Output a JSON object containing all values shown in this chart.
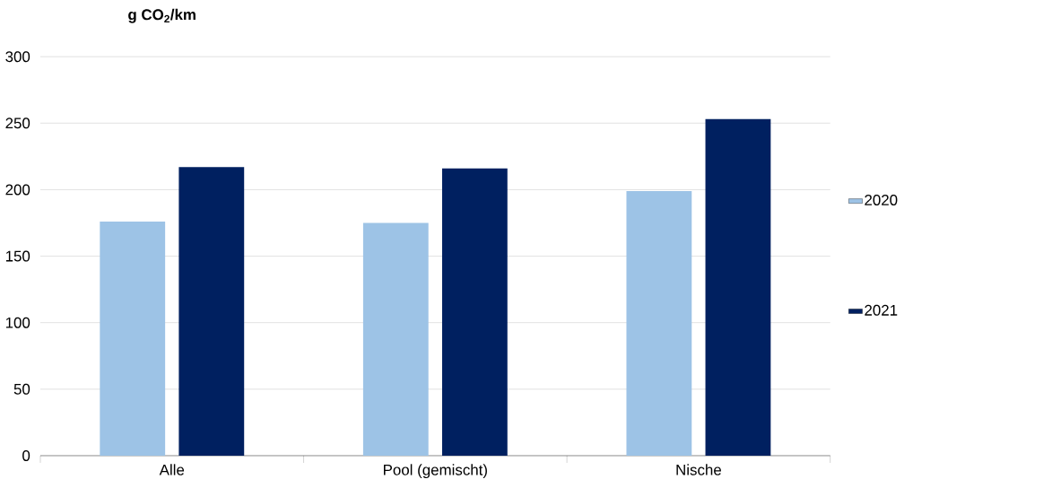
{
  "chart_data": {
    "type": "bar",
    "ylabel": "g CO$_{2}$/km",
    "categories": [
      "Alle",
      "Pool (gemischt)",
      "Nische"
    ],
    "series": [
      {
        "name": "2020",
        "color": "#9dc3e6",
        "values": [
          176,
          175,
          199
        ]
      },
      {
        "name": "2021",
        "color": "#002060",
        "values": [
          217,
          216,
          253
        ]
      }
    ],
    "ylim": [
      0,
      300
    ],
    "yticks": [
      0,
      50,
      100,
      150,
      200,
      250,
      300
    ],
    "grid": "y",
    "legend": "right"
  }
}
